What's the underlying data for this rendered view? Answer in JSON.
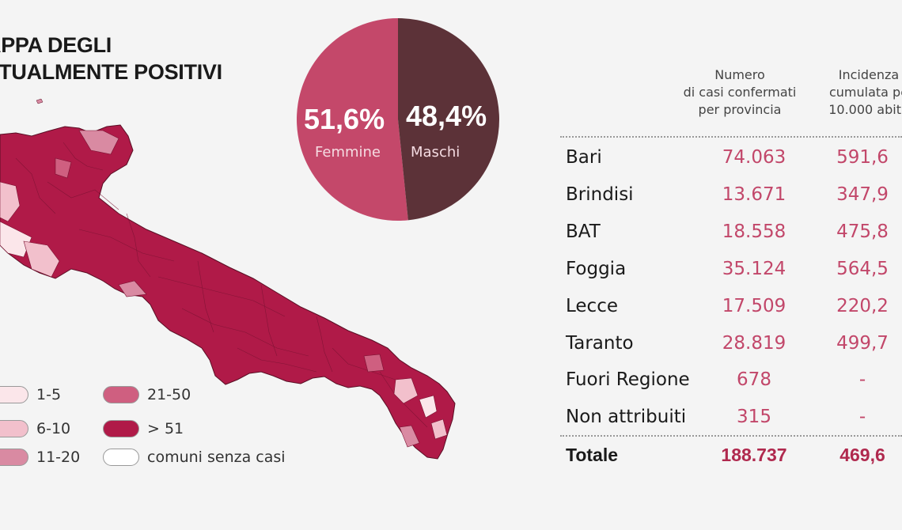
{
  "title": {
    "line1": "APPA DEGLI",
    "line2": "TTUALMENTE POSITIVI"
  },
  "pie": {
    "female_pct": "51,6%",
    "female_label": "Femmine",
    "male_pct": "48,4%",
    "male_label": "Maschi",
    "female_value": 51.6,
    "male_value": 48.4,
    "female_color": "#c4486a",
    "male_color": "#5c3238"
  },
  "legend": [
    {
      "label": "1-5",
      "color": "#fbe6ea"
    },
    {
      "label": "6-10",
      "color": "#f2c0cc"
    },
    {
      "label": "11-20",
      "color": "#d98aa2"
    },
    {
      "label": "21-50",
      "color": "#cf5f80"
    },
    {
      "label": "> 51",
      "color": "#b01a48"
    },
    {
      "label": "comuni senza casi",
      "color": "#ffffff"
    }
  ],
  "table": {
    "col1_header": [
      "Numero",
      "di casi confermati",
      "per provincia"
    ],
    "col2_header": [
      "Incidenza",
      "cumulata pe",
      "10.000 abita"
    ],
    "rows": [
      {
        "name": "Bari",
        "cases": "74.063",
        "incidence": "591,6"
      },
      {
        "name": "Brindisi",
        "cases": "13.671",
        "incidence": "347,9"
      },
      {
        "name": "BAT",
        "cases": "18.558",
        "incidence": "475,8"
      },
      {
        "name": "Foggia",
        "cases": "35.124",
        "incidence": "564,5"
      },
      {
        "name": "Lecce",
        "cases": "17.509",
        "incidence": "220,2"
      },
      {
        "name": "Taranto",
        "cases": "28.819",
        "incidence": "499,7"
      },
      {
        "name": "Fuori Regione",
        "cases": "678",
        "incidence": "-"
      },
      {
        "name": "Non attribuiti",
        "cases": "315",
        "incidence": "-"
      }
    ],
    "total": {
      "name": "Totale",
      "cases": "188.737",
      "incidence": "469,6"
    }
  }
}
